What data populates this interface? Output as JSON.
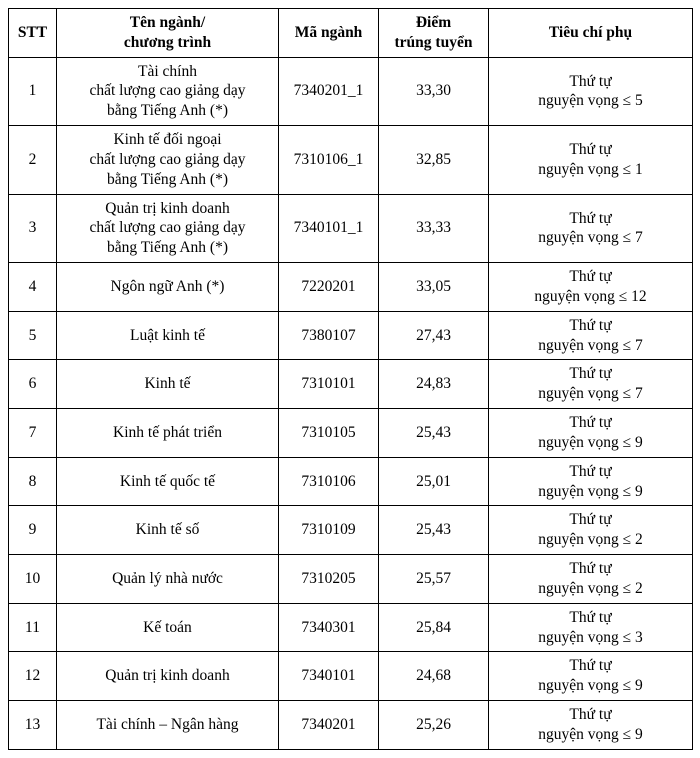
{
  "table": {
    "columns": [
      {
        "label": "STT"
      },
      {
        "label_l1": "Tên ngành/",
        "label_l2": "chương trình"
      },
      {
        "label": "Mã ngành"
      },
      {
        "label_l1": "Điểm",
        "label_l2": "trúng tuyển"
      },
      {
        "label": "Tiêu chí phụ"
      }
    ],
    "rows": [
      {
        "stt": "1",
        "name_l1": "Tài chính",
        "name_l2": "chất lượng cao giảng dạy",
        "name_l3": "bằng Tiếng Anh (*)",
        "code": "7340201_1",
        "score": "33,30",
        "crit_l1": "Thứ tự",
        "crit_l2": "nguyện vọng ≤ 5"
      },
      {
        "stt": "2",
        "name_l1": "Kinh tế đối ngoại",
        "name_l2": "chất lượng cao giảng dạy",
        "name_l3": "bằng Tiếng Anh (*)",
        "code": "7310106_1",
        "score": "32,85",
        "crit_l1": "Thứ tự",
        "crit_l2": "nguyện vọng ≤ 1"
      },
      {
        "stt": "3",
        "name_l1": "Quản trị kinh doanh",
        "name_l2": "chất lượng cao giảng dạy",
        "name_l3": "bằng Tiếng Anh (*)",
        "code": "7340101_1",
        "score": "33,33",
        "crit_l1": "Thứ tự",
        "crit_l2": "nguyện vọng ≤ 7"
      },
      {
        "stt": "4",
        "name_l1": "Ngôn ngữ Anh (*)",
        "code": "7220201",
        "score": "33,05",
        "crit_l1": "Thứ tự",
        "crit_l2": "nguyện vọng ≤ 12"
      },
      {
        "stt": "5",
        "name_l1": "Luật kinh tế",
        "code": "7380107",
        "score": "27,43",
        "crit_l1": "Thứ tự",
        "crit_l2": "nguyện vọng ≤ 7"
      },
      {
        "stt": "6",
        "name_l1": "Kinh tế",
        "code": "7310101",
        "score": "24,83",
        "crit_l1": "Thứ tự",
        "crit_l2": "nguyện vọng ≤ 7"
      },
      {
        "stt": "7",
        "name_l1": "Kinh tế phát triển",
        "code": "7310105",
        "score": "25,43",
        "crit_l1": "Thứ tự",
        "crit_l2": "nguyện vọng ≤ 9"
      },
      {
        "stt": "8",
        "name_l1": "Kinh tế quốc tế",
        "code": "7310106",
        "score": "25,01",
        "crit_l1": "Thứ tự",
        "crit_l2": "nguyện vọng ≤ 9"
      },
      {
        "stt": "9",
        "name_l1": "Kinh tế số",
        "code": "7310109",
        "score": "25,43",
        "crit_l1": "Thứ tự",
        "crit_l2": "nguyện vọng ≤ 2"
      },
      {
        "stt": "10",
        "name_l1": "Quản lý nhà nước",
        "code": "7310205",
        "score": "25,57",
        "crit_l1": "Thứ tự",
        "crit_l2": "nguyện vọng ≤ 2"
      },
      {
        "stt": "11",
        "name_l1": "Kế toán",
        "code": "7340301",
        "score": "25,84",
        "crit_l1": "Thứ tự",
        "crit_l2": "nguyện vọng ≤ 3"
      },
      {
        "stt": "12",
        "name_l1": "Quản trị kinh doanh",
        "code": "7340101",
        "score": "24,68",
        "crit_l1": "Thứ tự",
        "crit_l2": "nguyện vọng ≤ 9"
      },
      {
        "stt": "13",
        "name_l1": "Tài chính – Ngân hàng",
        "code": "7340201",
        "score": "25,26",
        "crit_l1": "Thứ tự",
        "crit_l2": "nguyện vọng ≤ 9"
      }
    ]
  }
}
